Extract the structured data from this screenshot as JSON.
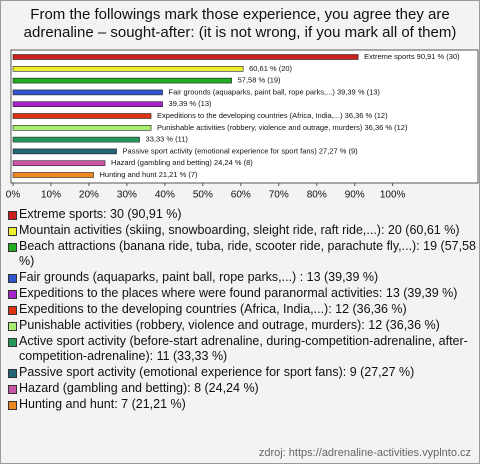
{
  "chart_data": {
    "type": "hbar",
    "title": "From the followings mark those experience, you agree they are adrenaline – sought-after: (it is not wrong, if you mark all of them)",
    "categories": [
      "Extreme sports: 30 (90,91 %)",
      "Mountain activities (skiing, snowboarding, sleight ride, raft ride,...): 20 (60,61 %)",
      "Beach attractions (banana ride, tuba, ride, scooter ride, parachute fly,...): 19 (57,58 %)",
      "Fair grounds (aquaparks, paint ball, rope parks,...) : 13 (39,39 %)",
      "Expeditions to the places where were found paranormal activities: 13 (39,39 %)",
      "Expeditions to the developing countries (Africa, India,...): 12 (36,36 %)",
      "Punishable activities (robbery, violence and outrage, murders): 12 (36,36 %)",
      "Active sport activity (before-start adrenaline, during-competition-adrenaline, after-competition-adrenaline): 11 (33,33 %)",
      "Passive sport activity (emotional experience for sport fans): 9 (27,27 %)",
      "Hazard (gambling and betting): 8 (24,24 %)",
      "Hunting and hunt: 7 (21,21 %)"
    ],
    "values": [
      90.91,
      60.61,
      57.58,
      39.39,
      39.39,
      36.36,
      36.36,
      33.33,
      27.27,
      24.24,
      21.21
    ],
    "value_labels": [
      "Extreme sports 90,91 % (30)",
      "60,61 % (20)",
      "57,58 % (19)",
      "Fair grounds (aquaparks, paint ball, rope parks,...) 39,39 % (13)",
      "39,39 % (13)",
      "Expeditions to the developing countries (Africa, India,...) 36,36 % (12)",
      "Punishable activities (robbery, violence and outrage, murders) 36,36 % (12)",
      "33,33 % (11)",
      "Passive sport activity (emotional experience for sport fans) 27,27 % (9)",
      "Hazard (gambling and betting) 24,24 % (8)",
      "Hunting and hunt 21,21 % (7)"
    ],
    "colors": [
      "#cc2020",
      "#eeee30",
      "#22aa22",
      "#3355cc",
      "#aa22cc",
      "#dd3311",
      "#a8ee70",
      "#22995a",
      "#226677",
      "#cc55aa",
      "#ee8822"
    ],
    "xlim": [
      0,
      123
    ],
    "xticks": [
      {
        "value": 0,
        "label": "0%"
      },
      {
        "value": 10,
        "label": "10%"
      },
      {
        "value": 20,
        "label": "20%"
      },
      {
        "value": 30,
        "label": "30%"
      },
      {
        "value": 40,
        "label": "40%"
      },
      {
        "value": 50,
        "label": "50%"
      },
      {
        "value": 60,
        "label": "60%"
      },
      {
        "value": 70,
        "label": "70%"
      },
      {
        "value": 80,
        "label": "80%"
      },
      {
        "value": 90,
        "label": "90%"
      },
      {
        "value": 100,
        "label": "100%"
      }
    ],
    "source": "zdroj: https://adrenaline-activities.vyplnto.cz"
  }
}
